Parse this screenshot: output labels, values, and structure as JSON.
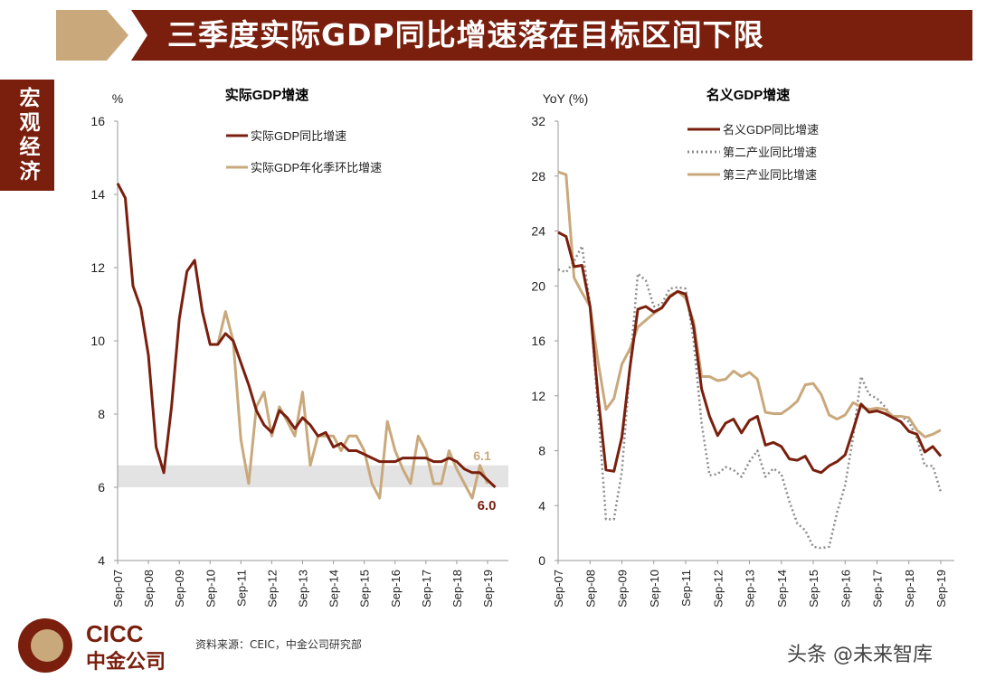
{
  "header": {
    "title": "三季度实际GDP同比增速落在目标区间下限"
  },
  "side_tab": "宏观经济",
  "footer": {
    "source": "资料来源：CEIC，中金公司研究部",
    "logo_en": "CICC",
    "logo_cn": "中金公司",
    "watermark": "头条 @未来智库"
  },
  "colors": {
    "brand": "#7a1f0e",
    "tan": "#c9a97c",
    "gray": "#8c8c8c",
    "band": "#e3e3e3"
  },
  "chart_data": [
    {
      "type": "line",
      "title": "实际GDP增速",
      "ylabel": "%",
      "ylim": [
        4,
        16
      ],
      "yticks": [
        "4",
        "6",
        "8",
        "10",
        "12",
        "14",
        "16"
      ],
      "xtick_labels": [
        "Sep-07",
        "Sep-08",
        "Sep-09",
        "Sep-10",
        "Sep-11",
        "Sep-12",
        "Sep-13",
        "Sep-14",
        "Sep-15",
        "Sep-16",
        "Sep-17",
        "Sep-18",
        "Sep-19"
      ],
      "legend": "top-center",
      "grid": false,
      "shaded_band": [
        6.0,
        6.6
      ],
      "annotations": [
        "6.1",
        "6.0"
      ],
      "series": [
        {
          "name": "实际GDP同比增速",
          "color": "#7a1f0e",
          "style": "solid",
          "start_index": 0,
          "values": [
            14.3,
            13.9,
            11.5,
            10.9,
            9.6,
            7.1,
            6.4,
            8.2,
            10.6,
            11.9,
            12.2,
            10.8,
            9.9,
            9.9,
            10.2,
            10.0,
            9.4,
            8.8,
            8.1,
            7.7,
            7.5,
            8.1,
            7.9,
            7.6,
            7.9,
            7.7,
            7.4,
            7.5,
            7.1,
            7.2,
            7.0,
            7.0,
            6.9,
            6.8,
            6.7,
            6.7,
            6.7,
            6.8,
            6.8,
            6.8,
            6.8,
            6.7,
            6.7,
            6.8,
            6.7,
            6.5,
            6.4,
            6.4,
            6.2,
            6.0
          ]
        },
        {
          "name": "实际GDP年化季环比增速",
          "color": "#c9a97c",
          "style": "solid",
          "start_index": 13,
          "values": [
            9.9,
            10.8,
            10.0,
            7.3,
            6.1,
            8.2,
            8.6,
            7.4,
            8.2,
            7.8,
            7.4,
            8.6,
            6.6,
            7.4,
            7.4,
            7.4,
            7.0,
            7.4,
            7.4,
            7.0,
            6.1,
            5.7,
            7.8,
            7.0,
            6.5,
            6.1,
            7.4,
            7.0,
            6.1,
            6.1,
            7.0,
            6.5,
            6.1,
            5.7,
            6.6,
            6.1
          ]
        }
      ]
    },
    {
      "type": "line",
      "title": "名义GDP增速",
      "ylabel": "YoY (%)",
      "ylim": [
        0,
        32
      ],
      "yticks": [
        "0",
        "4",
        "8",
        "12",
        "16",
        "20",
        "24",
        "28",
        "32"
      ],
      "xtick_labels": [
        "Sep-07",
        "Sep-08",
        "Sep-09",
        "Sep-10",
        "Sep-11",
        "Sep-12",
        "Sep-13",
        "Sep-14",
        "Sep-15",
        "Sep-16",
        "Sep-17",
        "Sep-18",
        "Sep-19"
      ],
      "legend": "top-center",
      "grid": false,
      "series": [
        {
          "name": "名义GDP同比增速",
          "color": "#7a1f0e",
          "style": "solid",
          "start_index": 0,
          "values": [
            23.9,
            23.6,
            21.4,
            21.5,
            18.5,
            12,
            6.6,
            6.5,
            9,
            14,
            18.3,
            18.5,
            18.1,
            18.4,
            19.2,
            19.6,
            19.4,
            17,
            12.5,
            10.5,
            9.1,
            10,
            10.3,
            9.3,
            10.2,
            10.5,
            8.4,
            8.6,
            8.3,
            7.4,
            7.3,
            7.6,
            6.6,
            6.4,
            6.9,
            7.2,
            7.7,
            9.5,
            11.4,
            10.8,
            10.9,
            10.7,
            10.4,
            10.1,
            9.4,
            9.2,
            7.9,
            8.3,
            7.6
          ]
        },
        {
          "name": "第二产业同比增速",
          "color": "#8c8c8c",
          "style": "dotted",
          "start_index": 0,
          "values": [
            21.2,
            21.0,
            21.8,
            22.9,
            18.6,
            11,
            3,
            3,
            6.5,
            14,
            20.9,
            20.4,
            18.5,
            18.7,
            19.8,
            19.9,
            19.8,
            16,
            10,
            6.2,
            6.3,
            6.8,
            6.6,
            6.1,
            7.2,
            8,
            6.1,
            6.7,
            6.3,
            4.3,
            2.7,
            2.2,
            1.0,
            0.9,
            1.0,
            3.5,
            5.5,
            9.0,
            13.4,
            12.1,
            11.8,
            11.2,
            10.4,
            10.5,
            10.1,
            8.9,
            6.9,
            6.9,
            5.0
          ]
        },
        {
          "name": "第三产业同比增速",
          "color": "#c9a97c",
          "style": "solid",
          "start_index": 0,
          "values": [
            28.3,
            28.1,
            20.6,
            19.5,
            18.5,
            14.5,
            11.0,
            11.8,
            14.3,
            15.4,
            17,
            17.5,
            18,
            18.4,
            19.3,
            19.6,
            19.1,
            17.4,
            13.4,
            13.4,
            13.1,
            13.2,
            13.8,
            13.4,
            13.7,
            13.2,
            10.8,
            10.7,
            10.7,
            11.1,
            11.6,
            12.8,
            12.9,
            12.1,
            10.6,
            10.3,
            10.6,
            11.5,
            11.2,
            11.0,
            11.1,
            11.0,
            10.5,
            10.5,
            10.4,
            9.5,
            9.0,
            9.2,
            9.5
          ]
        }
      ]
    }
  ]
}
